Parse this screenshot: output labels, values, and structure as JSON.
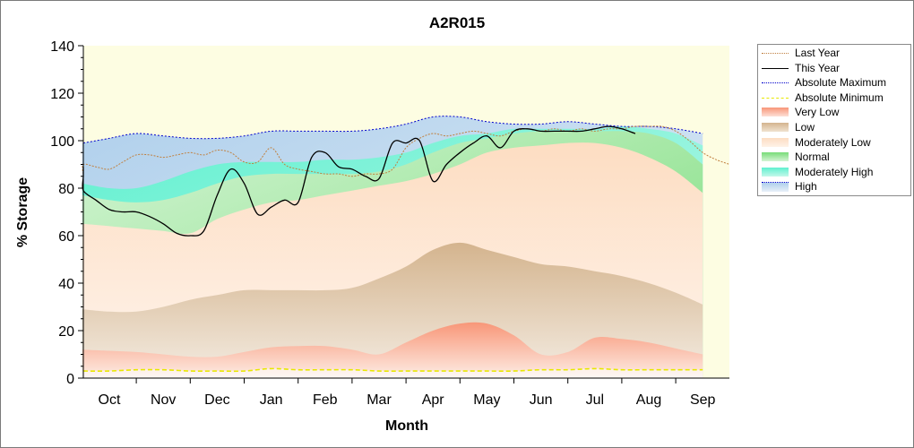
{
  "chart_data": {
    "type": "area",
    "title": "A2R015",
    "xlabel": "Month",
    "ylabel": "% Storage",
    "ylim": [
      0,
      140
    ],
    "yticks": [
      0,
      20,
      40,
      60,
      80,
      100,
      120,
      140
    ],
    "categories": [
      "Oct",
      "Nov",
      "Dec",
      "Jan",
      "Feb",
      "Mar",
      "Apr",
      "May",
      "Jun",
      "Jul",
      "Aug",
      "Sep"
    ],
    "grid": false,
    "legend_position": "right",
    "colors": {
      "plot_background": "#fdfde2",
      "last_year": "#c08040",
      "this_year": "#000000",
      "absolute_maximum": "#0000cc",
      "absolute_minimum": "#e8e800",
      "very_low": "#f8a080",
      "low": "#d8b890",
      "moderately_low": "#fde0c8",
      "normal": "#88e088",
      "moderately_high": "#60f0d0",
      "high": "#b0d0ec"
    },
    "band_x": [
      -0.5,
      0,
      0.5,
      1,
      1.5,
      2,
      2.5,
      3,
      3.5,
      4,
      4.5,
      5,
      5.5,
      6,
      6.5,
      7,
      7.5,
      8,
      8.5,
      9,
      9.5,
      10,
      10.5,
      11
    ],
    "bands": {
      "absolute_minimum": [
        3,
        3,
        3.5,
        3.5,
        3,
        3,
        3,
        4,
        3.5,
        3.5,
        3.5,
        3,
        3,
        3,
        3,
        3,
        3,
        3.5,
        3.5,
        4,
        3.5,
        3.5,
        3.5,
        3.5
      ],
      "very_low_top": [
        12,
        11.5,
        11,
        10,
        9,
        9,
        11,
        13,
        13.5,
        13.5,
        12,
        10,
        15,
        20,
        23,
        23,
        18,
        10,
        11,
        17,
        16.5,
        15,
        12.5,
        10
      ],
      "low_top": [
        29,
        28,
        28,
        30,
        33,
        35,
        37,
        37,
        37,
        37,
        38,
        42,
        47,
        54,
        57,
        54,
        51,
        48,
        47,
        45,
        43,
        40,
        36,
        31
      ],
      "moderately_low_top": [
        65,
        64,
        63,
        62,
        61,
        67,
        71,
        74,
        75,
        77,
        79,
        81,
        83,
        86,
        90,
        95,
        97,
        98,
        99,
        99,
        97,
        93,
        87,
        78
      ],
      "normal_top": [
        77,
        75,
        74,
        75,
        78,
        82,
        85,
        86,
        86,
        86,
        86,
        87,
        90,
        95,
        99,
        101,
        103,
        104,
        104,
        104,
        104,
        103,
        99,
        90
      ],
      "moderately_high_top": [
        82,
        80,
        80,
        83,
        87,
        90,
        91,
        91,
        91,
        92,
        92,
        93,
        95,
        99,
        102,
        103,
        105,
        105,
        105,
        105,
        106,
        105,
        103,
        98
      ],
      "high_top": [
        99,
        101,
        103,
        102,
        101,
        101,
        102,
        104,
        104,
        104,
        104,
        105,
        107,
        110,
        110,
        108,
        107,
        107,
        108,
        107,
        106,
        106,
        105,
        103
      ]
    },
    "series": [
      {
        "name": "Last Year",
        "x": [
          -1,
          -0.75,
          -0.5,
          -0.25,
          0,
          0.25,
          0.5,
          0.75,
          1,
          1.25,
          1.5,
          1.75,
          2,
          2.25,
          2.5,
          2.75,
          3,
          3.25,
          3.5,
          3.75,
          4,
          4.25,
          4.5,
          4.75,
          5,
          5.25,
          5.5,
          5.75,
          6,
          6.25,
          6.5,
          6.75,
          7,
          7.25,
          7.5,
          7.75,
          8,
          8.25,
          8.5,
          8.75,
          9,
          9.25,
          9.5,
          9.75,
          10,
          10.25,
          10.5,
          10.75,
          11,
          11.25,
          11.5
        ],
        "values": [
          90,
          86,
          90,
          89,
          88,
          91,
          94,
          94,
          93,
          94,
          95,
          94,
          96,
          95,
          91,
          91,
          97,
          90,
          88,
          87,
          86,
          86,
          85,
          86,
          86,
          88,
          97,
          101,
          103,
          102,
          103,
          104,
          103,
          102,
          104,
          105,
          104,
          105,
          104,
          105,
          104,
          105,
          105,
          106,
          106,
          106,
          104,
          100,
          95,
          92,
          90
        ]
      },
      {
        "name": "This Year",
        "x": [
          -1,
          -0.75,
          -0.5,
          -0.25,
          0,
          0.25,
          0.5,
          0.75,
          1,
          1.25,
          1.5,
          1.75,
          2,
          2.25,
          2.5,
          2.75,
          3,
          3.25,
          3.5,
          3.75,
          4,
          4.25,
          4.5,
          4.75,
          5,
          5.25,
          5.5,
          5.75,
          6,
          6.25,
          6.5,
          6.75,
          7,
          7.25,
          7.5,
          7.75,
          8,
          8.25,
          8.5,
          8.75,
          9,
          9.25,
          9.5,
          9.75
        ],
        "values": [
          89,
          85,
          79,
          75,
          71,
          70,
          70,
          68,
          65,
          61,
          60,
          62,
          77,
          88,
          82,
          69,
          72,
          75,
          74,
          93,
          95,
          89,
          88,
          85,
          84,
          99,
          99,
          100,
          83,
          90,
          95,
          99,
          102,
          97,
          104,
          105,
          104,
          104,
          104,
          104,
          105,
          106,
          105,
          103
        ]
      },
      {
        "name": "Absolute Maximum",
        "x": [
          -0.5,
          0,
          0.5,
          1,
          1.5,
          2,
          2.5,
          3,
          3.5,
          4,
          4.5,
          5,
          5.5,
          6,
          6.5,
          7,
          7.5,
          8,
          8.5,
          9,
          9.5,
          10,
          10.5,
          11
        ],
        "values": [
          99,
          101,
          103,
          102,
          101,
          101,
          102,
          104,
          104,
          104,
          104,
          105,
          107,
          110,
          110,
          108,
          107,
          107,
          108,
          107,
          106,
          106,
          105,
          103
        ]
      },
      {
        "name": "Absolute Minimum",
        "x": [
          -0.5,
          0,
          0.5,
          1,
          1.5,
          2,
          2.5,
          3,
          3.5,
          4,
          4.5,
          5,
          5.5,
          6,
          6.5,
          7,
          7.5,
          8,
          8.5,
          9,
          9.5,
          10,
          10.5,
          11
        ],
        "values": [
          3,
          3,
          3.5,
          3.5,
          3,
          3,
          3,
          4,
          3.5,
          3.5,
          3.5,
          3,
          3,
          3,
          3,
          3,
          3,
          3.5,
          3.5,
          4,
          3.5,
          3.5,
          3.5,
          3.5
        ]
      }
    ],
    "legend": [
      "Last Year",
      "This Year",
      "Absolute Maximum",
      "Absolute Minimum",
      "Very Low",
      "Low",
      "Moderately Low",
      "Normal",
      "Moderately High",
      "High"
    ]
  }
}
